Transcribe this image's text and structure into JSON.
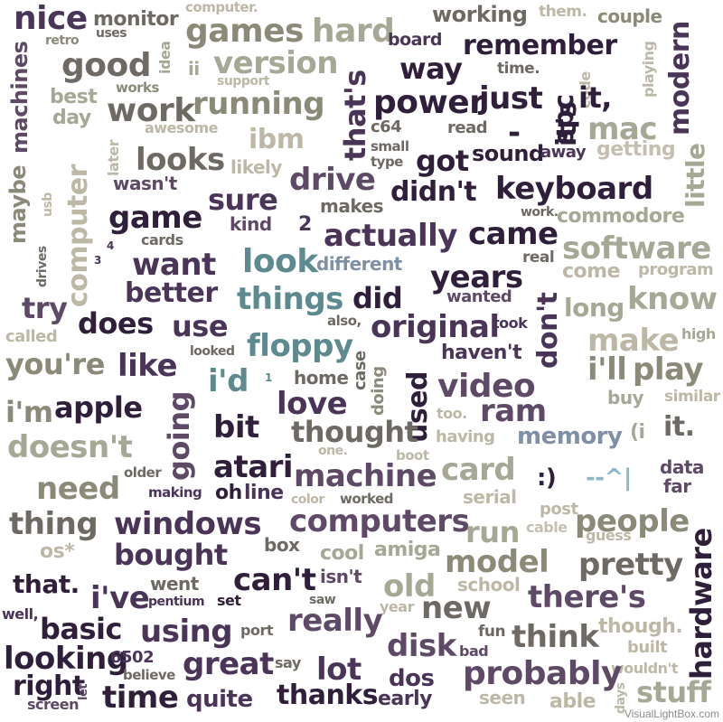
{
  "watermark": "VisualLightBox.com",
  "colors": {
    "d": "#2f1f3a",
    "p": "#4a3558",
    "m": "#5e4a66",
    "g": "#6e6a63",
    "o": "#8b8a78",
    "l": "#a7a795",
    "t": "#bdb8a6",
    "s": "#c4bfb0",
    "q": "#5d8a8f",
    "c": "#8cb8c9",
    "b": "#7f8fa5"
  },
  "words": [
    "nice",
    "monitor",
    "computer.",
    "working",
    "them.",
    "couple",
    "retro",
    "uses",
    "games",
    "hard",
    "board",
    "remember",
    "good",
    "idea",
    "version",
    "ii",
    "that's",
    "way",
    "time.",
    "code",
    "playing",
    "machines",
    "works",
    "support",
    "best",
    "day",
    "work",
    "running",
    "power",
    "just",
    "-",
    "spc",
    "it,",
    "modern",
    "awesome",
    "mac",
    "ibm",
    "c64",
    "read",
    "it's",
    "getting",
    "later",
    "small",
    "type",
    "sound",
    "away",
    "looks",
    "little",
    "computer",
    "likely",
    "got",
    "usb",
    "wasn't",
    "drive",
    "didn't",
    "keyboard",
    "maybe",
    "sure",
    "makes",
    "work.",
    "commodore",
    "game",
    "kind",
    "2",
    "came",
    "actually",
    "cards",
    "software",
    "3",
    "4",
    "drives",
    "real",
    "want",
    "look",
    "different",
    "come",
    "program",
    "years",
    "better",
    "things",
    "wanted",
    "did",
    "try",
    "know",
    "long",
    "does",
    "use",
    "also,",
    "took",
    "original",
    "called",
    "don't",
    "make",
    "high",
    "floppy",
    "looked",
    "haven't",
    "you're",
    "like",
    "case",
    "used",
    "play",
    "i'll",
    "i'd",
    "1",
    "home",
    "doing",
    "video",
    "buy",
    "similar",
    "i'm",
    "apple",
    "going",
    "love",
    "too.",
    "ram",
    "bit",
    "thought",
    "it.",
    "(i",
    "doesn't",
    "memory",
    "having",
    "one.",
    "boot",
    "atari",
    "card",
    "data",
    "older",
    "need",
    "machine",
    ":)",
    "--^|",
    "far",
    "making",
    "oh",
    "line",
    "color",
    "worked",
    "serial",
    "post",
    "thing",
    "windows",
    "computers",
    "cable",
    "people",
    "os*",
    "run",
    "guess",
    "bought",
    "box",
    "cool",
    "amiga",
    "model",
    "that.",
    "went",
    "can't",
    "isn't",
    "pretty",
    "hardware",
    "i've",
    "school",
    "pentium",
    "set",
    "old",
    "saw",
    "there's",
    "well,",
    "year",
    "new",
    "basic",
    "using",
    "really",
    "port",
    "though.",
    "fun",
    "looking",
    "disk",
    "think",
    "built",
    "6502",
    "bad",
    "say",
    "right",
    "let",
    "great",
    "believe",
    "lot",
    "wouldn't",
    "dos",
    "probably",
    "days",
    "screen",
    "time",
    "quite",
    "thanks",
    "early",
    "seen",
    "able",
    "stuff"
  ]
}
